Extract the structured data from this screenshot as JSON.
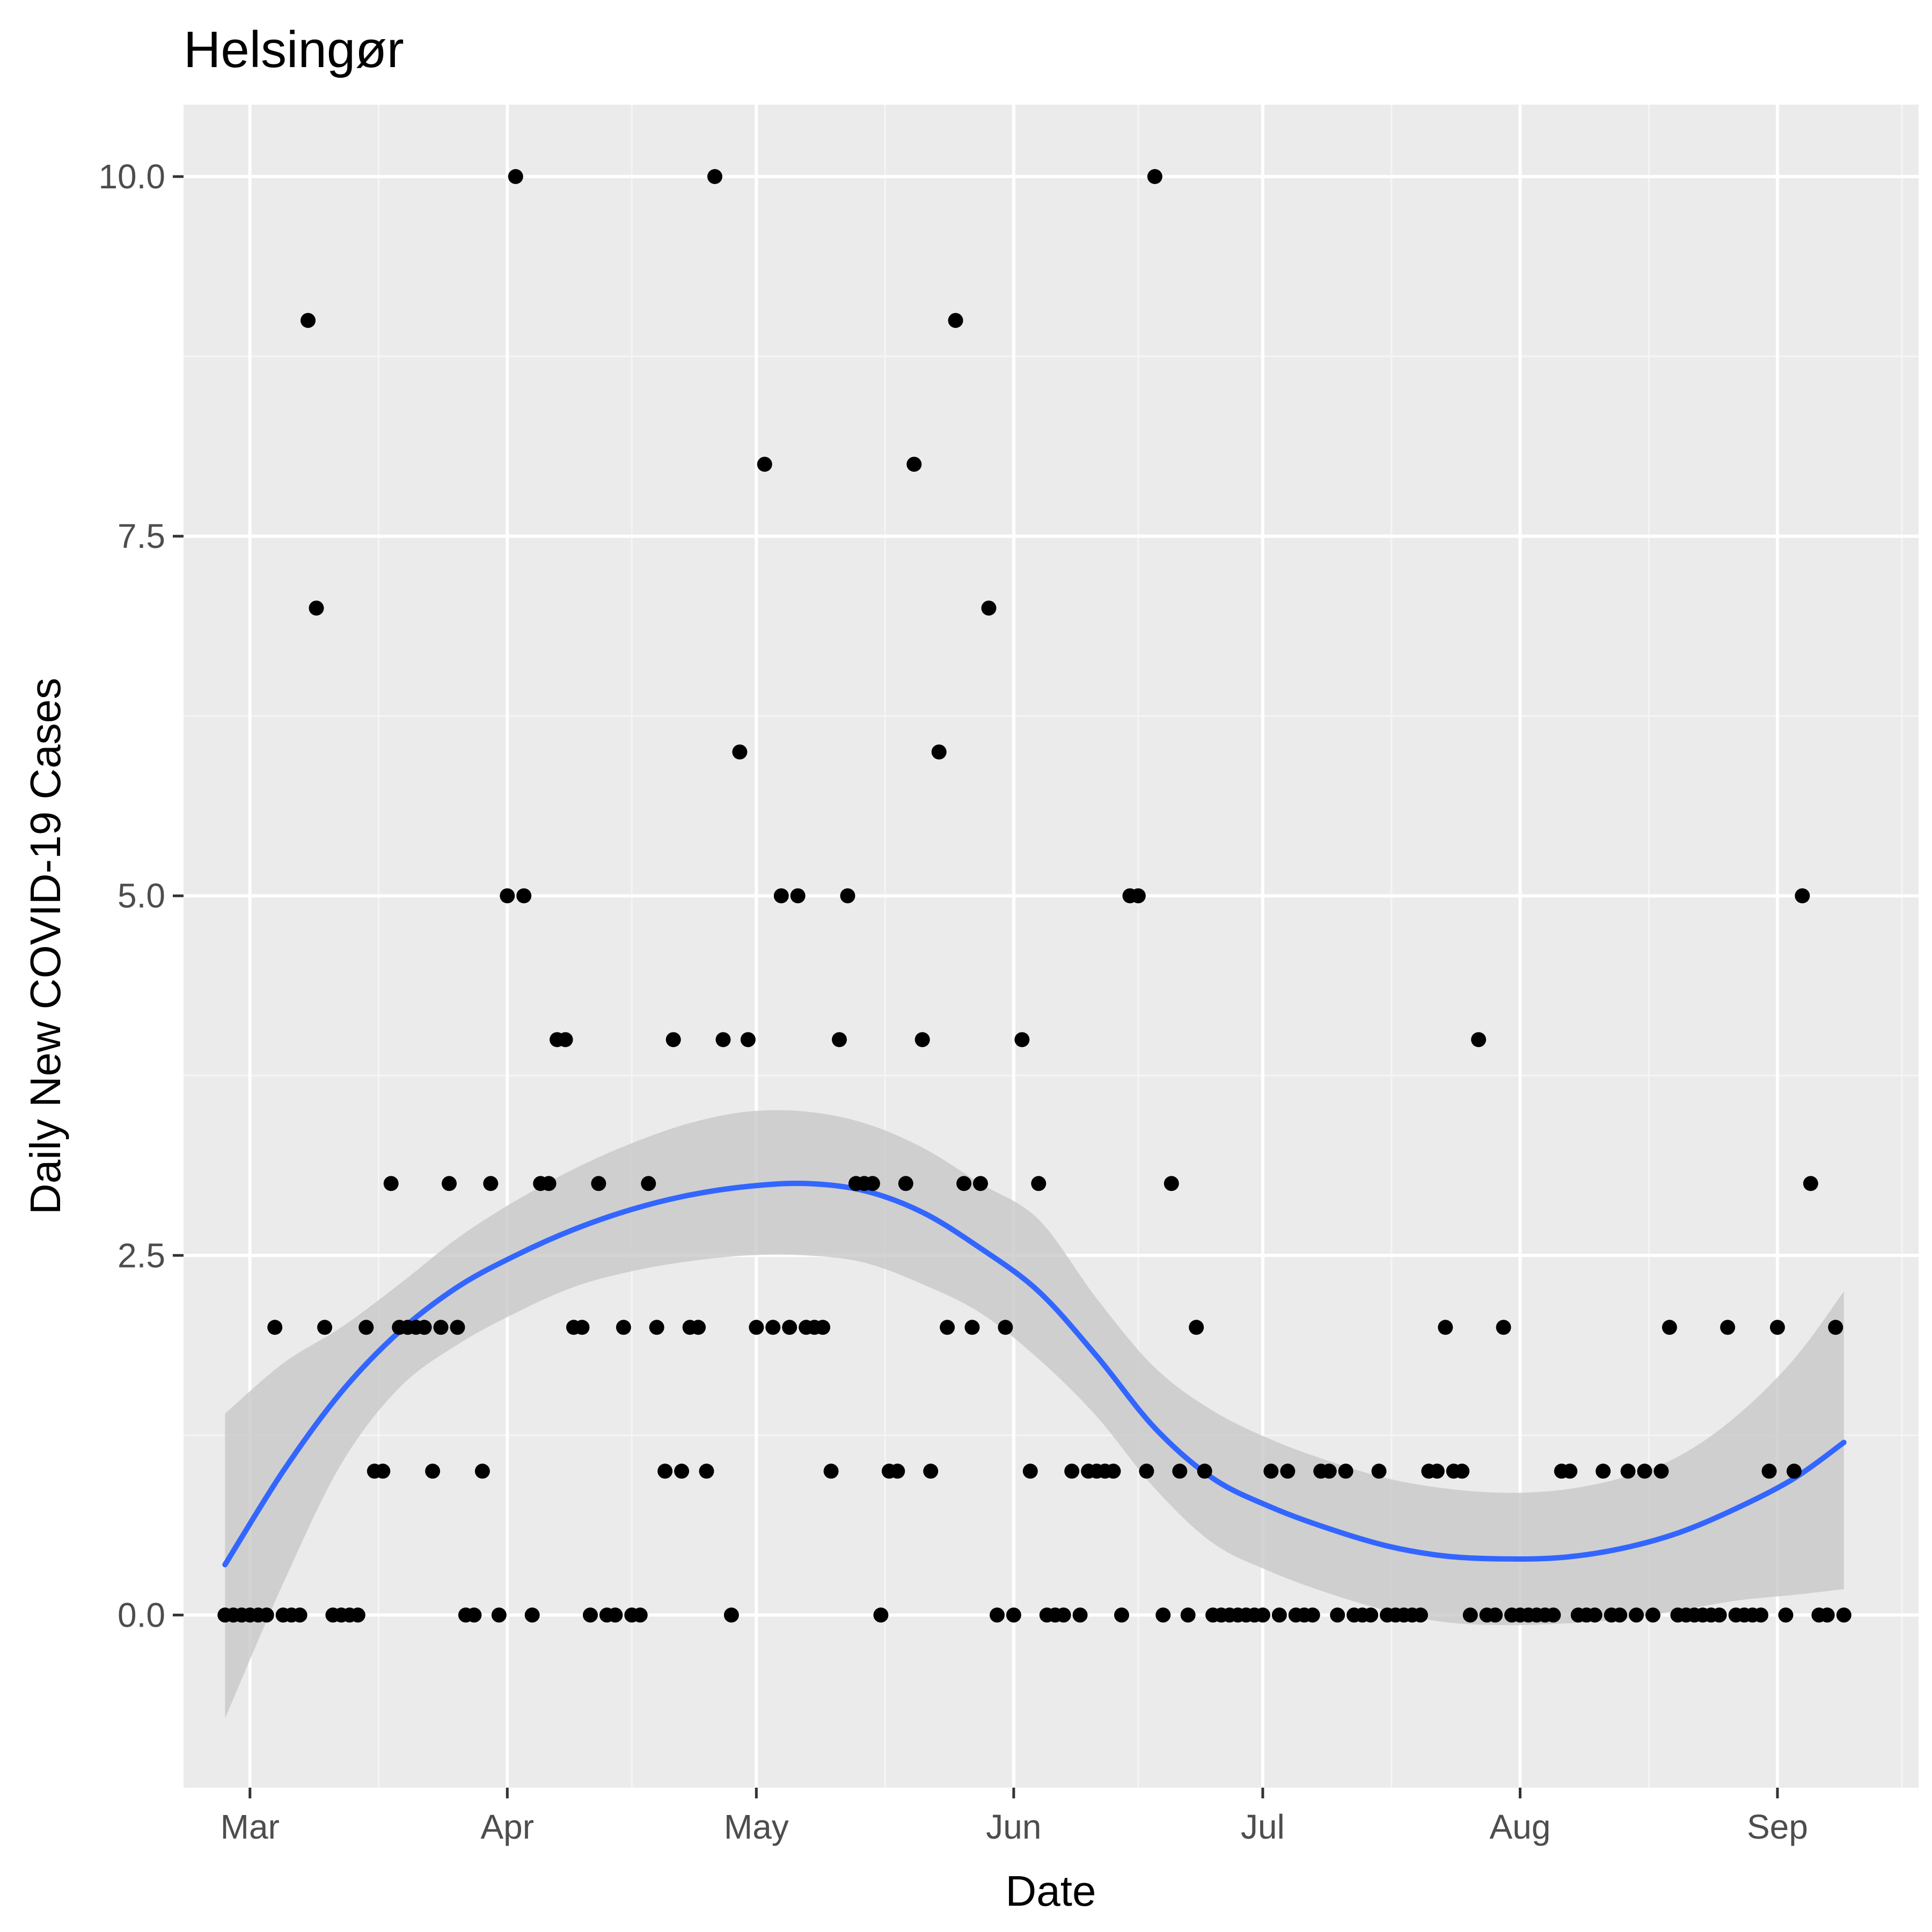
{
  "chart_data": {
    "type": "scatter",
    "title": "Helsingør",
    "xlabel": "Date",
    "ylabel": "Daily New COVID-19 Cases",
    "x_type": "date",
    "xlim": [
      "2020-02-22",
      "2020-09-18"
    ],
    "ylim": [
      -1.2,
      10.5
    ],
    "grid": true,
    "legend": "none",
    "colors": {
      "panel": "#ebebeb",
      "grid_major": "#ffffff",
      "grid_minor": "#f5f5f5",
      "points": "#000000",
      "smooth_line": "#3366ff",
      "ribbon": "#c8c8c8",
      "tick_label": "#4d4d4d"
    },
    "x_ticks": [
      {
        "date": "2020-03-01",
        "label": "Mar"
      },
      {
        "date": "2020-04-01",
        "label": "Apr"
      },
      {
        "date": "2020-05-01",
        "label": "May"
      },
      {
        "date": "2020-06-01",
        "label": "Jun"
      },
      {
        "date": "2020-07-01",
        "label": "Jul"
      },
      {
        "date": "2020-08-01",
        "label": "Aug"
      },
      {
        "date": "2020-09-01",
        "label": "Sep"
      }
    ],
    "y_ticks": [
      {
        "value": 0,
        "label": "0.0"
      },
      {
        "value": 2.5,
        "label": "2.5"
      },
      {
        "value": 5,
        "label": "5.0"
      },
      {
        "value": 7.5,
        "label": "7.5"
      },
      {
        "value": 10,
        "label": "10.0"
      }
    ],
    "points": [
      [
        "2020-02-27",
        0
      ],
      [
        "2020-02-28",
        0
      ],
      [
        "2020-02-29",
        0
      ],
      [
        "2020-03-01",
        0
      ],
      [
        "2020-03-02",
        0
      ],
      [
        "2020-03-03",
        0
      ],
      [
        "2020-03-04",
        2
      ],
      [
        "2020-03-05",
        0
      ],
      [
        "2020-03-06",
        0
      ],
      [
        "2020-03-07",
        0
      ],
      [
        "2020-03-08",
        9
      ],
      [
        "2020-03-09",
        7
      ],
      [
        "2020-03-10",
        2
      ],
      [
        "2020-03-11",
        0
      ],
      [
        "2020-03-12",
        0
      ],
      [
        "2020-03-13",
        0
      ],
      [
        "2020-03-14",
        0
      ],
      [
        "2020-03-15",
        2
      ],
      [
        "2020-03-16",
        1
      ],
      [
        "2020-03-17",
        1
      ],
      [
        "2020-03-18",
        3
      ],
      [
        "2020-03-19",
        2
      ],
      [
        "2020-03-20",
        2
      ],
      [
        "2020-03-21",
        2
      ],
      [
        "2020-03-22",
        2
      ],
      [
        "2020-03-23",
        1
      ],
      [
        "2020-03-24",
        2
      ],
      [
        "2020-03-25",
        3
      ],
      [
        "2020-03-26",
        2
      ],
      [
        "2020-03-27",
        0
      ],
      [
        "2020-03-28",
        0
      ],
      [
        "2020-03-29",
        1
      ],
      [
        "2020-03-30",
        3
      ],
      [
        "2020-03-31",
        0
      ],
      [
        "2020-04-01",
        5
      ],
      [
        "2020-04-02",
        10
      ],
      [
        "2020-04-03",
        5
      ],
      [
        "2020-04-04",
        0
      ],
      [
        "2020-04-05",
        3
      ],
      [
        "2020-04-06",
        3
      ],
      [
        "2020-04-07",
        4
      ],
      [
        "2020-04-08",
        4
      ],
      [
        "2020-04-09",
        2
      ],
      [
        "2020-04-10",
        2
      ],
      [
        "2020-04-11",
        0
      ],
      [
        "2020-04-12",
        3
      ],
      [
        "2020-04-13",
        0
      ],
      [
        "2020-04-14",
        0
      ],
      [
        "2020-04-15",
        2
      ],
      [
        "2020-04-16",
        0
      ],
      [
        "2020-04-17",
        0
      ],
      [
        "2020-04-18",
        3
      ],
      [
        "2020-04-19",
        2
      ],
      [
        "2020-04-20",
        1
      ],
      [
        "2020-04-21",
        4
      ],
      [
        "2020-04-22",
        1
      ],
      [
        "2020-04-23",
        2
      ],
      [
        "2020-04-24",
        2
      ],
      [
        "2020-04-25",
        1
      ],
      [
        "2020-04-26",
        10
      ],
      [
        "2020-04-27",
        4
      ],
      [
        "2020-04-28",
        0
      ],
      [
        "2020-04-29",
        6
      ],
      [
        "2020-04-30",
        4
      ],
      [
        "2020-05-01",
        2
      ],
      [
        "2020-05-02",
        8
      ],
      [
        "2020-05-03",
        2
      ],
      [
        "2020-05-04",
        5
      ],
      [
        "2020-05-05",
        2
      ],
      [
        "2020-05-06",
        5
      ],
      [
        "2020-05-07",
        2
      ],
      [
        "2020-05-08",
        2
      ],
      [
        "2020-05-09",
        2
      ],
      [
        "2020-05-10",
        1
      ],
      [
        "2020-05-11",
        4
      ],
      [
        "2020-05-12",
        5
      ],
      [
        "2020-05-13",
        3
      ],
      [
        "2020-05-14",
        3
      ],
      [
        "2020-05-15",
        3
      ],
      [
        "2020-05-16",
        0
      ],
      [
        "2020-05-17",
        1
      ],
      [
        "2020-05-18",
        1
      ],
      [
        "2020-05-19",
        3
      ],
      [
        "2020-05-20",
        8
      ],
      [
        "2020-05-21",
        4
      ],
      [
        "2020-05-22",
        1
      ],
      [
        "2020-05-23",
        6
      ],
      [
        "2020-05-24",
        2
      ],
      [
        "2020-05-25",
        9
      ],
      [
        "2020-05-26",
        3
      ],
      [
        "2020-05-27",
        2
      ],
      [
        "2020-05-28",
        3
      ],
      [
        "2020-05-29",
        7
      ],
      [
        "2020-05-30",
        0
      ],
      [
        "2020-05-31",
        2
      ],
      [
        "2020-06-01",
        0
      ],
      [
        "2020-06-02",
        4
      ],
      [
        "2020-06-03",
        1
      ],
      [
        "2020-06-04",
        3
      ],
      [
        "2020-06-05",
        0
      ],
      [
        "2020-06-06",
        0
      ],
      [
        "2020-06-07",
        0
      ],
      [
        "2020-06-08",
        1
      ],
      [
        "2020-06-09",
        0
      ],
      [
        "2020-06-10",
        1
      ],
      [
        "2020-06-11",
        1
      ],
      [
        "2020-06-12",
        1
      ],
      [
        "2020-06-13",
        1
      ],
      [
        "2020-06-14",
        0
      ],
      [
        "2020-06-15",
        5
      ],
      [
        "2020-06-16",
        5
      ],
      [
        "2020-06-17",
        1
      ],
      [
        "2020-06-18",
        10
      ],
      [
        "2020-06-19",
        0
      ],
      [
        "2020-06-20",
        3
      ],
      [
        "2020-06-21",
        1
      ],
      [
        "2020-06-22",
        0
      ],
      [
        "2020-06-23",
        2
      ],
      [
        "2020-06-24",
        1
      ],
      [
        "2020-06-25",
        0
      ],
      [
        "2020-06-26",
        0
      ],
      [
        "2020-06-27",
        0
      ],
      [
        "2020-06-28",
        0
      ],
      [
        "2020-06-29",
        0
      ],
      [
        "2020-06-30",
        0
      ],
      [
        "2020-07-01",
        0
      ],
      [
        "2020-07-02",
        1
      ],
      [
        "2020-07-03",
        0
      ],
      [
        "2020-07-04",
        1
      ],
      [
        "2020-07-05",
        0
      ],
      [
        "2020-07-06",
        0
      ],
      [
        "2020-07-07",
        0
      ],
      [
        "2020-07-08",
        1
      ],
      [
        "2020-07-09",
        1
      ],
      [
        "2020-07-10",
        0
      ],
      [
        "2020-07-11",
        1
      ],
      [
        "2020-07-12",
        0
      ],
      [
        "2020-07-13",
        0
      ],
      [
        "2020-07-14",
        0
      ],
      [
        "2020-07-15",
        1
      ],
      [
        "2020-07-16",
        0
      ],
      [
        "2020-07-17",
        0
      ],
      [
        "2020-07-18",
        0
      ],
      [
        "2020-07-19",
        0
      ],
      [
        "2020-07-20",
        0
      ],
      [
        "2020-07-21",
        1
      ],
      [
        "2020-07-22",
        1
      ],
      [
        "2020-07-23",
        2
      ],
      [
        "2020-07-24",
        1
      ],
      [
        "2020-07-25",
        1
      ],
      [
        "2020-07-26",
        0
      ],
      [
        "2020-07-27",
        4
      ],
      [
        "2020-07-28",
        0
      ],
      [
        "2020-07-29",
        0
      ],
      [
        "2020-07-30",
        2
      ],
      [
        "2020-07-31",
        0
      ],
      [
        "2020-08-01",
        0
      ],
      [
        "2020-08-02",
        0
      ],
      [
        "2020-08-03",
        0
      ],
      [
        "2020-08-04",
        0
      ],
      [
        "2020-08-05",
        0
      ],
      [
        "2020-08-06",
        1
      ],
      [
        "2020-08-07",
        1
      ],
      [
        "2020-08-08",
        0
      ],
      [
        "2020-08-09",
        0
      ],
      [
        "2020-08-10",
        0
      ],
      [
        "2020-08-11",
        1
      ],
      [
        "2020-08-12",
        0
      ],
      [
        "2020-08-13",
        0
      ],
      [
        "2020-08-14",
        1
      ],
      [
        "2020-08-15",
        0
      ],
      [
        "2020-08-16",
        1
      ],
      [
        "2020-08-17",
        0
      ],
      [
        "2020-08-18",
        1
      ],
      [
        "2020-08-19",
        2
      ],
      [
        "2020-08-20",
        0
      ],
      [
        "2020-08-21",
        0
      ],
      [
        "2020-08-22",
        0
      ],
      [
        "2020-08-23",
        0
      ],
      [
        "2020-08-24",
        0
      ],
      [
        "2020-08-25",
        0
      ],
      [
        "2020-08-26",
        2
      ],
      [
        "2020-08-27",
        0
      ],
      [
        "2020-08-28",
        0
      ],
      [
        "2020-08-29",
        0
      ],
      [
        "2020-08-30",
        0
      ],
      [
        "2020-08-31",
        1
      ],
      [
        "2020-09-01",
        2
      ],
      [
        "2020-09-02",
        0
      ],
      [
        "2020-09-03",
        1
      ],
      [
        "2020-09-04",
        5
      ],
      [
        "2020-09-05",
        3
      ],
      [
        "2020-09-06",
        0
      ],
      [
        "2020-09-07",
        0
      ],
      [
        "2020-09-08",
        2
      ],
      [
        "2020-09-09",
        0
      ]
    ],
    "smooth": [
      [
        "2020-02-27",
        0.35
      ],
      [
        "2020-03-05",
        1.0
      ],
      [
        "2020-03-12",
        1.55
      ],
      [
        "2020-03-19",
        1.97
      ],
      [
        "2020-03-26",
        2.28
      ],
      [
        "2020-04-02",
        2.5
      ],
      [
        "2020-04-09",
        2.68
      ],
      [
        "2020-04-16",
        2.82
      ],
      [
        "2020-04-23",
        2.92
      ],
      [
        "2020-04-30",
        2.98
      ],
      [
        "2020-05-07",
        3.0
      ],
      [
        "2020-05-14",
        2.95
      ],
      [
        "2020-05-21",
        2.8
      ],
      [
        "2020-05-28",
        2.55
      ],
      [
        "2020-06-04",
        2.25
      ],
      [
        "2020-06-11",
        1.8
      ],
      [
        "2020-06-18",
        1.3
      ],
      [
        "2020-06-25",
        0.95
      ],
      [
        "2020-07-02",
        0.75
      ],
      [
        "2020-07-09",
        0.6
      ],
      [
        "2020-07-16",
        0.48
      ],
      [
        "2020-07-23",
        0.41
      ],
      [
        "2020-07-30",
        0.39
      ],
      [
        "2020-08-06",
        0.4
      ],
      [
        "2020-08-13",
        0.46
      ],
      [
        "2020-08-20",
        0.57
      ],
      [
        "2020-08-27",
        0.74
      ],
      [
        "2020-09-03",
        0.95
      ],
      [
        "2020-09-09",
        1.2
      ]
    ],
    "ribbon_upper": [
      [
        "2020-02-27",
        1.4
      ],
      [
        "2020-03-05",
        1.75
      ],
      [
        "2020-03-12",
        2.0
      ],
      [
        "2020-03-19",
        2.3
      ],
      [
        "2020-03-26",
        2.62
      ],
      [
        "2020-04-02",
        2.88
      ],
      [
        "2020-04-09",
        3.1
      ],
      [
        "2020-04-16",
        3.28
      ],
      [
        "2020-04-23",
        3.42
      ],
      [
        "2020-04-30",
        3.5
      ],
      [
        "2020-05-07",
        3.5
      ],
      [
        "2020-05-14",
        3.42
      ],
      [
        "2020-05-21",
        3.25
      ],
      [
        "2020-05-28",
        3.0
      ],
      [
        "2020-06-04",
        2.75
      ],
      [
        "2020-06-11",
        2.2
      ],
      [
        "2020-06-18",
        1.72
      ],
      [
        "2020-06-25",
        1.42
      ],
      [
        "2020-07-02",
        1.22
      ],
      [
        "2020-07-09",
        1.07
      ],
      [
        "2020-07-16",
        0.95
      ],
      [
        "2020-07-23",
        0.88
      ],
      [
        "2020-07-30",
        0.85
      ],
      [
        "2020-08-06",
        0.87
      ],
      [
        "2020-08-13",
        0.95
      ],
      [
        "2020-08-20",
        1.1
      ],
      [
        "2020-08-27",
        1.38
      ],
      [
        "2020-09-03",
        1.78
      ],
      [
        "2020-09-09",
        2.25
      ]
    ],
    "ribbon_lower": [
      [
        "2020-02-27",
        -0.72
      ],
      [
        "2020-03-05",
        0.22
      ],
      [
        "2020-03-12",
        1.05
      ],
      [
        "2020-03-19",
        1.58
      ],
      [
        "2020-03-26",
        1.88
      ],
      [
        "2020-04-02",
        2.1
      ],
      [
        "2020-04-09",
        2.28
      ],
      [
        "2020-04-16",
        2.39
      ],
      [
        "2020-04-23",
        2.46
      ],
      [
        "2020-04-30",
        2.5
      ],
      [
        "2020-05-07",
        2.5
      ],
      [
        "2020-05-14",
        2.45
      ],
      [
        "2020-05-21",
        2.3
      ],
      [
        "2020-05-28",
        2.1
      ],
      [
        "2020-06-04",
        1.78
      ],
      [
        "2020-06-11",
        1.38
      ],
      [
        "2020-06-18",
        0.88
      ],
      [
        "2020-06-25",
        0.5
      ],
      [
        "2020-07-02",
        0.3
      ],
      [
        "2020-07-09",
        0.15
      ],
      [
        "2020-07-16",
        0.03
      ],
      [
        "2020-07-23",
        -0.05
      ],
      [
        "2020-07-30",
        -0.07
      ],
      [
        "2020-08-06",
        -0.06
      ],
      [
        "2020-08-13",
        -0.03
      ],
      [
        "2020-08-20",
        0.03
      ],
      [
        "2020-08-27",
        0.1
      ],
      [
        "2020-09-03",
        0.14
      ],
      [
        "2020-09-09",
        0.18
      ]
    ]
  }
}
